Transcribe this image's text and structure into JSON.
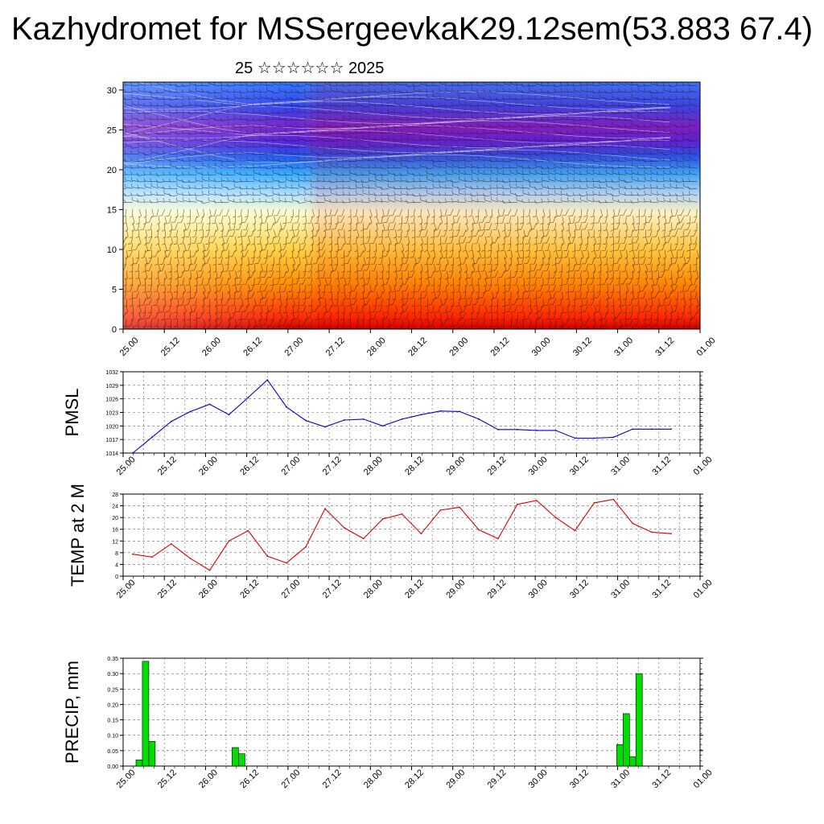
{
  "title": "Kazhydromet for MSSergeevkaK29.12sem(53.883 67.4)",
  "subtitle": "25 ☆☆☆☆☆☆ 2025",
  "time_ticks": [
    "25.00",
    "25.12",
    "26.00",
    "26.12",
    "27.00",
    "27.12",
    "28.00",
    "28.12",
    "29.00",
    "29.12",
    "30.00",
    "30.12",
    "31.00",
    "31.12",
    "01.00"
  ],
  "colors": {
    "pmsl": "#0000cc",
    "temp": "#dd0000",
    "precip": "#00dd00"
  },
  "chart_data": [
    {
      "type": "heatmap",
      "name_hint": "vertical profile",
      "y_ticks": [
        "0",
        "5",
        "10",
        "15",
        "20",
        "25",
        "30"
      ],
      "ylim": [
        0,
        31
      ],
      "xlim": [
        0,
        84
      ],
      "colormap": [
        "#cc0000",
        "#ff2a00",
        "#ff8c00",
        "#ffd040",
        "#ffffcc",
        "#aaddff",
        "#33aaff",
        "#2255ee",
        "#5522dd",
        "#7722cc",
        "#3344ee",
        "#3377ff"
      ],
      "has_wind_barbs": true,
      "has_contours": true
    },
    {
      "type": "line",
      "ylabel": "PMSL",
      "ylim": [
        1014,
        1032
      ],
      "y_ticks": [
        "1014",
        "1017",
        "1020",
        "1023",
        "1026",
        "1029",
        "1032"
      ],
      "x": [
        0,
        3,
        6,
        9,
        12,
        15,
        18,
        21,
        24,
        27,
        30,
        33,
        36,
        39,
        42,
        45,
        48,
        51,
        54,
        57,
        60,
        63,
        66,
        69,
        72,
        75,
        78,
        81,
        84
      ],
      "values": [
        1014,
        1017.5,
        1021,
        1023.2,
        1024.8,
        1022.5,
        1026.3,
        1030.2,
        1024.2,
        1021.2,
        1019.8,
        1021.3,
        1021.5,
        1020,
        1021.5,
        1022.5,
        1023.3,
        1023.2,
        1021.5,
        1019.2,
        1019.2,
        1019,
        1019,
        1017.3,
        1017.3,
        1017.5,
        1019.3,
        1019.3,
        1019.3
      ]
    },
    {
      "type": "line",
      "ylabel": "TEMP at 2 M",
      "ylim": [
        0,
        28
      ],
      "y_ticks": [
        "0",
        "4",
        "8",
        "12",
        "16",
        "20",
        "24",
        "28"
      ],
      "x": [
        0,
        3,
        6,
        9,
        12,
        15,
        18,
        21,
        24,
        27,
        30,
        33,
        36,
        39,
        42,
        45,
        48,
        51,
        54,
        57,
        60,
        63,
        66,
        69,
        72,
        75,
        78,
        81,
        84
      ],
      "values": [
        7.5,
        6.5,
        11,
        6,
        2,
        12,
        15.5,
        6.8,
        4.5,
        10,
        23,
        16.5,
        12.8,
        19.5,
        21.2,
        14.5,
        22.5,
        23.5,
        15.8,
        12.8,
        24.5,
        25.8,
        20,
        15.5,
        25,
        26.2,
        18,
        15,
        14.5
      ]
    },
    {
      "type": "bar",
      "ylabel": "PRECIP, mm",
      "ylim": [
        0,
        0.35
      ],
      "y_ticks": [
        "0.00",
        "0.05",
        "0.10",
        "0.15",
        "0.20",
        "0.25",
        "0.30",
        "0.35"
      ],
      "x": [
        1,
        2,
        3,
        16,
        17,
        76,
        77,
        78,
        79
      ],
      "values": [
        0.02,
        0.34,
        0.08,
        0.06,
        0.04,
        0.07,
        0.17,
        0.03,
        0.3
      ]
    }
  ]
}
